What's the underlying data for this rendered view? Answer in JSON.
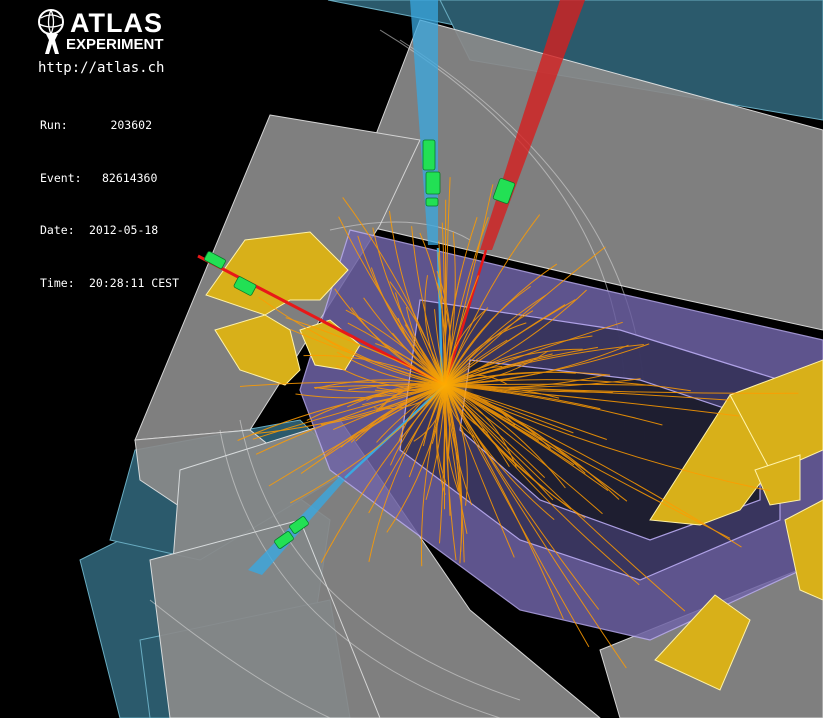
{
  "logo": {
    "word1": "ATLAS",
    "word2": "EXPERIMENT",
    "url": "http://atlas.ch"
  },
  "event_info": [
    {
      "label": "Run:",
      "value": "203602"
    },
    {
      "label": "Event:",
      "value": "82614360"
    },
    {
      "label": "Date:",
      "value": "2012-05-18"
    },
    {
      "label": "Time:",
      "value": "20:28:11 CEST"
    }
  ],
  "colors": {
    "background": "#000000",
    "muon_chambers": "#2e5f72",
    "calorimeter_outer": "#8c8c8c",
    "calorimeter_inner": "#7a6cb0",
    "endcap": "#d8b019",
    "tracks": "#ff9c00",
    "electron_tracks": "#e81818",
    "muon_tracks": "#3aa8e0",
    "hits": "#22e054"
  }
}
